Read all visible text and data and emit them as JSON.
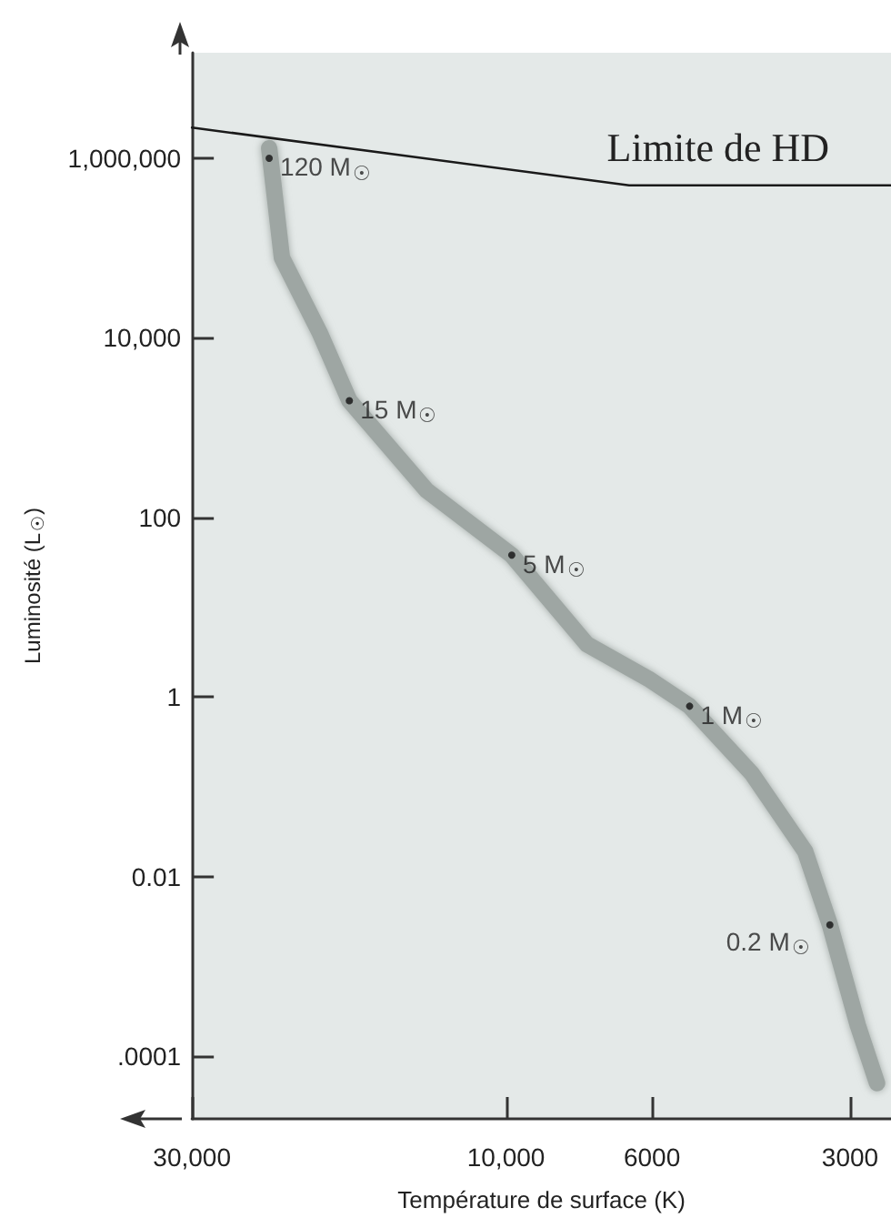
{
  "chart_data": {
    "type": "line",
    "xlabel": "Température de surface (K)",
    "ylabel": "Luminosité (L$_{☉}$)",
    "log": "xy",
    "grid": false,
    "xlim": [
      30000,
      2600
    ],
    "ylim": [
      2e-05,
      15000000
    ],
    "xticks": [
      {
        "value": 30000,
        "label": "30,000"
      },
      {
        "value": 10000,
        "label": "10,000"
      },
      6000,
      3000
    ],
    "yticks": [
      {
        "value": 0.0001,
        "label": ".0001"
      },
      0.01,
      1,
      100,
      {
        "value": 10000,
        "label": "10,000"
      },
      {
        "value": 1000000,
        "label": "1,000,000"
      }
    ],
    "series": [
      {
        "color": "#9ea6a3",
        "marker": "none",
        "x": [
          22900,
          21900,
          19200,
          17300,
          13200,
          9800,
          7530,
          6080,
          5260,
          4230,
          3510,
          3220,
          2920,
          2730
        ],
        "values": [
          1300000,
          78000,
          11500,
          2000,
          200,
          38,
          3.85,
          1.6,
          0.79,
          0.14,
          0.019,
          0.0029,
          0.00022,
          5e-05
        ]
      },
      {
        "color": "#1a1a1a",
        "marker": "none",
        "x": [
          30000,
          6500,
          2600
        ],
        "values": [
          2200000,
          500000,
          500000
        ]
      },
      {
        "type": "scatter",
        "color": "#111111",
        "marker": "circle",
        "x": [
          22900,
          17300,
          9800,
          5260,
          3220
        ],
        "values": [
          1000000,
          2000,
          38,
          0.79,
          0.0029
        ]
      }
    ],
    "annotations": [
      "Limite de HD",
      {
        "text": "120 M$_{☉}$",
        "x": 22900,
        "y": 1000000
      },
      {
        "text": "15 M$_{☉}$",
        "x": 17300,
        "y": 2000
      },
      {
        "text": "5 M$_{☉}$",
        "x": 9800,
        "y": 38
      },
      {
        "text": "1 M$_{☉}$",
        "x": 5260,
        "y": 0.79
      },
      {
        "text": "0.2 M$_{☉}$",
        "x": 3220,
        "y": 0.0029
      }
    ]
  }
}
